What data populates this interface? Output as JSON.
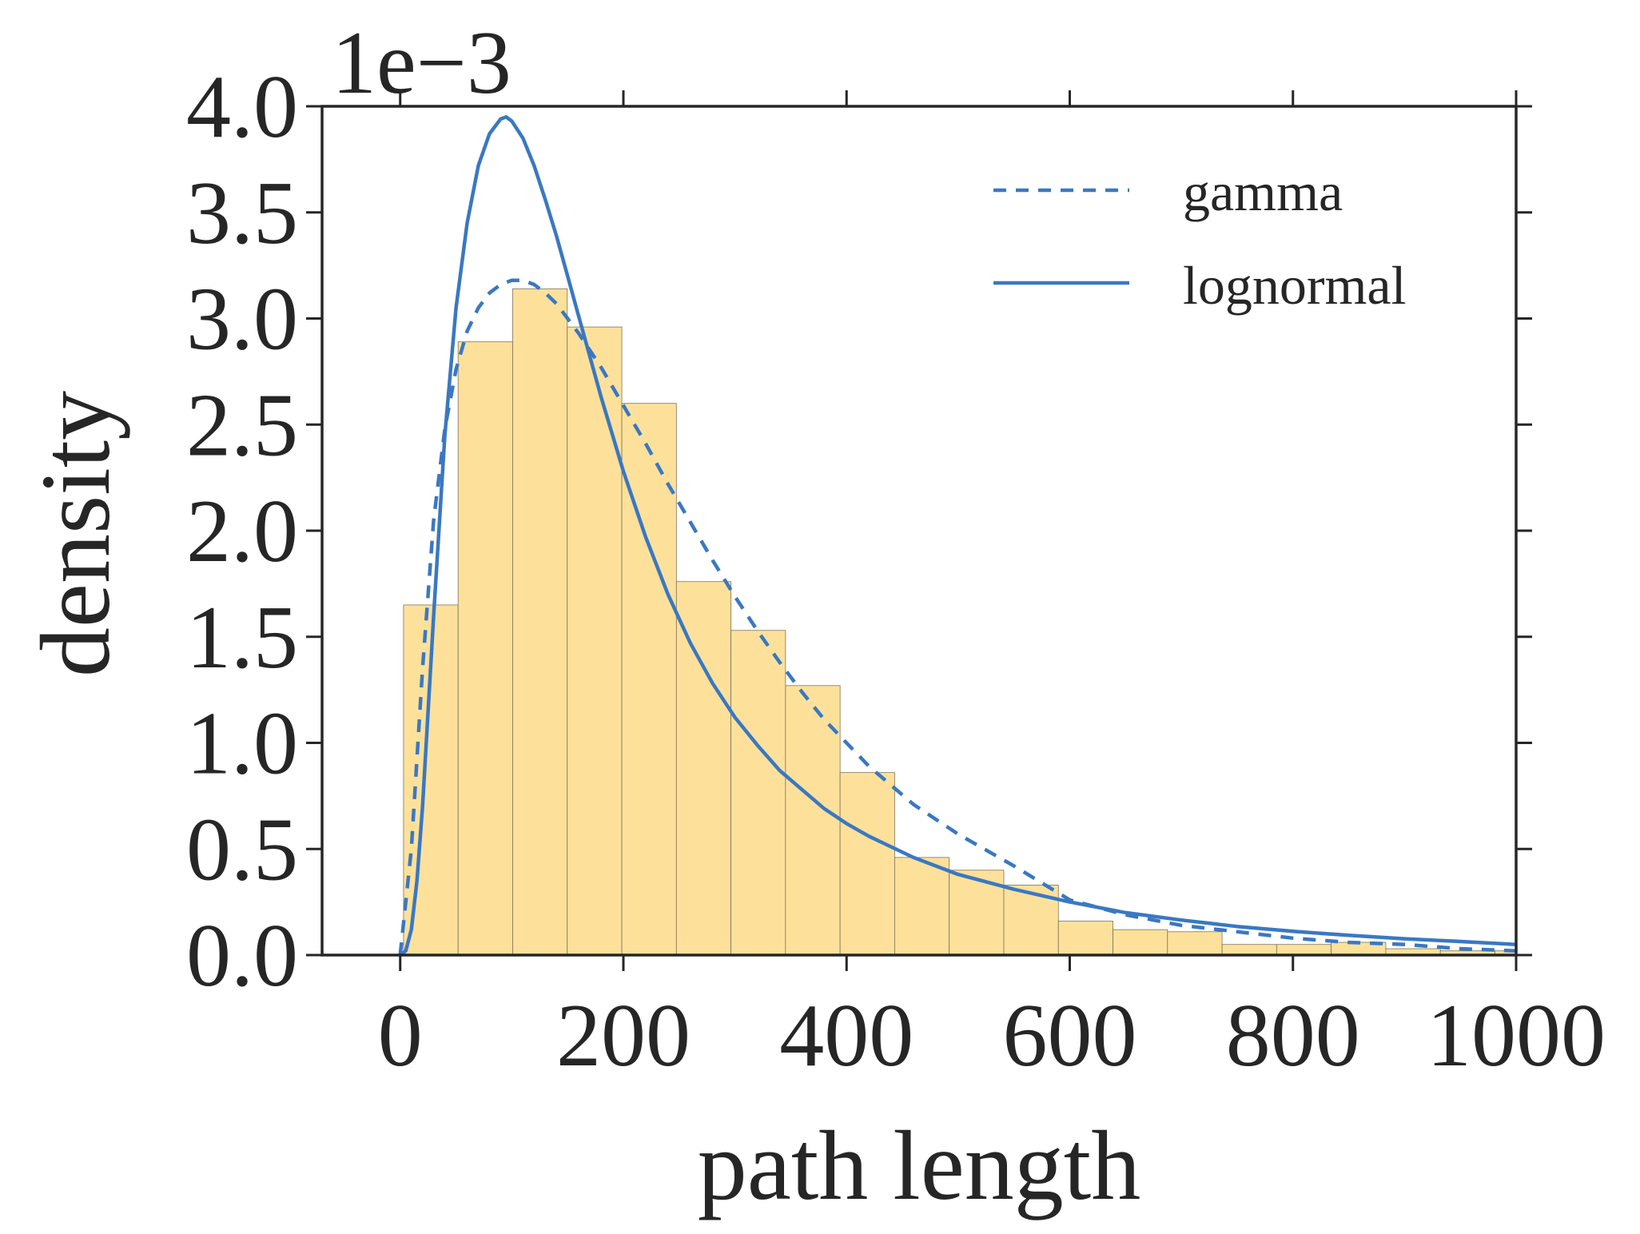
{
  "chart_data": {
    "type": "bar",
    "title": "",
    "xlabel": "path length",
    "ylabel": "density",
    "offset_label": "1e−3",
    "xlim": [
      -70,
      1000
    ],
    "ylim": [
      0,
      4.0
    ],
    "xticks": [
      0,
      200,
      400,
      600,
      800,
      1000
    ],
    "xtick_labels": [
      "0",
      "200",
      "400",
      "600",
      "800",
      "1000"
    ],
    "yticks": [
      0.0,
      0.5,
      1.0,
      1.5,
      2.0,
      2.5,
      3.0,
      3.5,
      4.0
    ],
    "ytick_labels": [
      "0.0",
      "0.5",
      "1.0",
      "1.5",
      "2.0",
      "2.5",
      "3.0",
      "3.5",
      "4.0"
    ],
    "histogram": {
      "bin_width": 48.9,
      "bin_starts": [
        3,
        51.9,
        100.8,
        149.7,
        198.6,
        247.5,
        296.4,
        345.3,
        394.2,
        443.1,
        492,
        540.9,
        589.8,
        638.7,
        687.6,
        736.5,
        785.4,
        834.3,
        883.2,
        932.1,
        981
      ],
      "values": [
        1.65,
        2.89,
        3.14,
        2.96,
        2.6,
        1.76,
        1.53,
        1.27,
        0.86,
        0.46,
        0.4,
        0.33,
        0.16,
        0.12,
        0.11,
        0.05,
        0.05,
        0.06,
        0.03,
        0.02,
        0.02
      ],
      "color": "#fde19b",
      "edge_color": "#7f7355"
    },
    "series": [
      {
        "name": "gamma",
        "style": "dashed",
        "color": "#3a78c2",
        "x": [
          0,
          10,
          20,
          30,
          40,
          50,
          60,
          70,
          80,
          90,
          100,
          110,
          120,
          130,
          140,
          150,
          160,
          180,
          200,
          220,
          240,
          260,
          280,
          300,
          320,
          340,
          360,
          380,
          400,
          420,
          440,
          460,
          480,
          500,
          550,
          600,
          650,
          700,
          750,
          800,
          850,
          900,
          950,
          1000
        ],
        "values": [
          0.0,
          0.5,
          1.35,
          2.05,
          2.48,
          2.76,
          2.94,
          3.05,
          3.12,
          3.16,
          3.18,
          3.18,
          3.16,
          3.12,
          3.07,
          3.0,
          2.93,
          2.77,
          2.59,
          2.41,
          2.22,
          2.04,
          1.86,
          1.69,
          1.53,
          1.38,
          1.24,
          1.11,
          1.0,
          0.89,
          0.8,
          0.71,
          0.64,
          0.57,
          0.42,
          0.26,
          0.19,
          0.14,
          0.11,
          0.08,
          0.06,
          0.05,
          0.03,
          0.02
        ]
      },
      {
        "name": "lognormal",
        "style": "solid",
        "color": "#3a78c2",
        "x": [
          0,
          5,
          10,
          15,
          20,
          30,
          40,
          50,
          60,
          70,
          80,
          90,
          95,
          100,
          110,
          120,
          130,
          140,
          150,
          160,
          180,
          200,
          220,
          240,
          260,
          280,
          300,
          320,
          340,
          360,
          380,
          400,
          420,
          440,
          460,
          480,
          500,
          550,
          600,
          650,
          700,
          750,
          800,
          850,
          900,
          950,
          1000
        ],
        "values": [
          0.0,
          0.02,
          0.12,
          0.35,
          0.7,
          1.6,
          2.45,
          3.05,
          3.45,
          3.72,
          3.87,
          3.94,
          3.95,
          3.93,
          3.85,
          3.72,
          3.56,
          3.39,
          3.2,
          3.01,
          2.63,
          2.28,
          1.97,
          1.7,
          1.47,
          1.28,
          1.12,
          0.99,
          0.87,
          0.78,
          0.69,
          0.62,
          0.56,
          0.51,
          0.46,
          0.42,
          0.38,
          0.31,
          0.25,
          0.2,
          0.165,
          0.135,
          0.112,
          0.093,
          0.077,
          0.064,
          0.05
        ]
      }
    ],
    "legend": {
      "placement": "top-right",
      "entries": [
        {
          "label": "gamma",
          "style": "dashed",
          "color": "#3a78c2"
        },
        {
          "label": "lognormal",
          "style": "solid",
          "color": "#3a78c2"
        }
      ]
    },
    "grid": false
  }
}
